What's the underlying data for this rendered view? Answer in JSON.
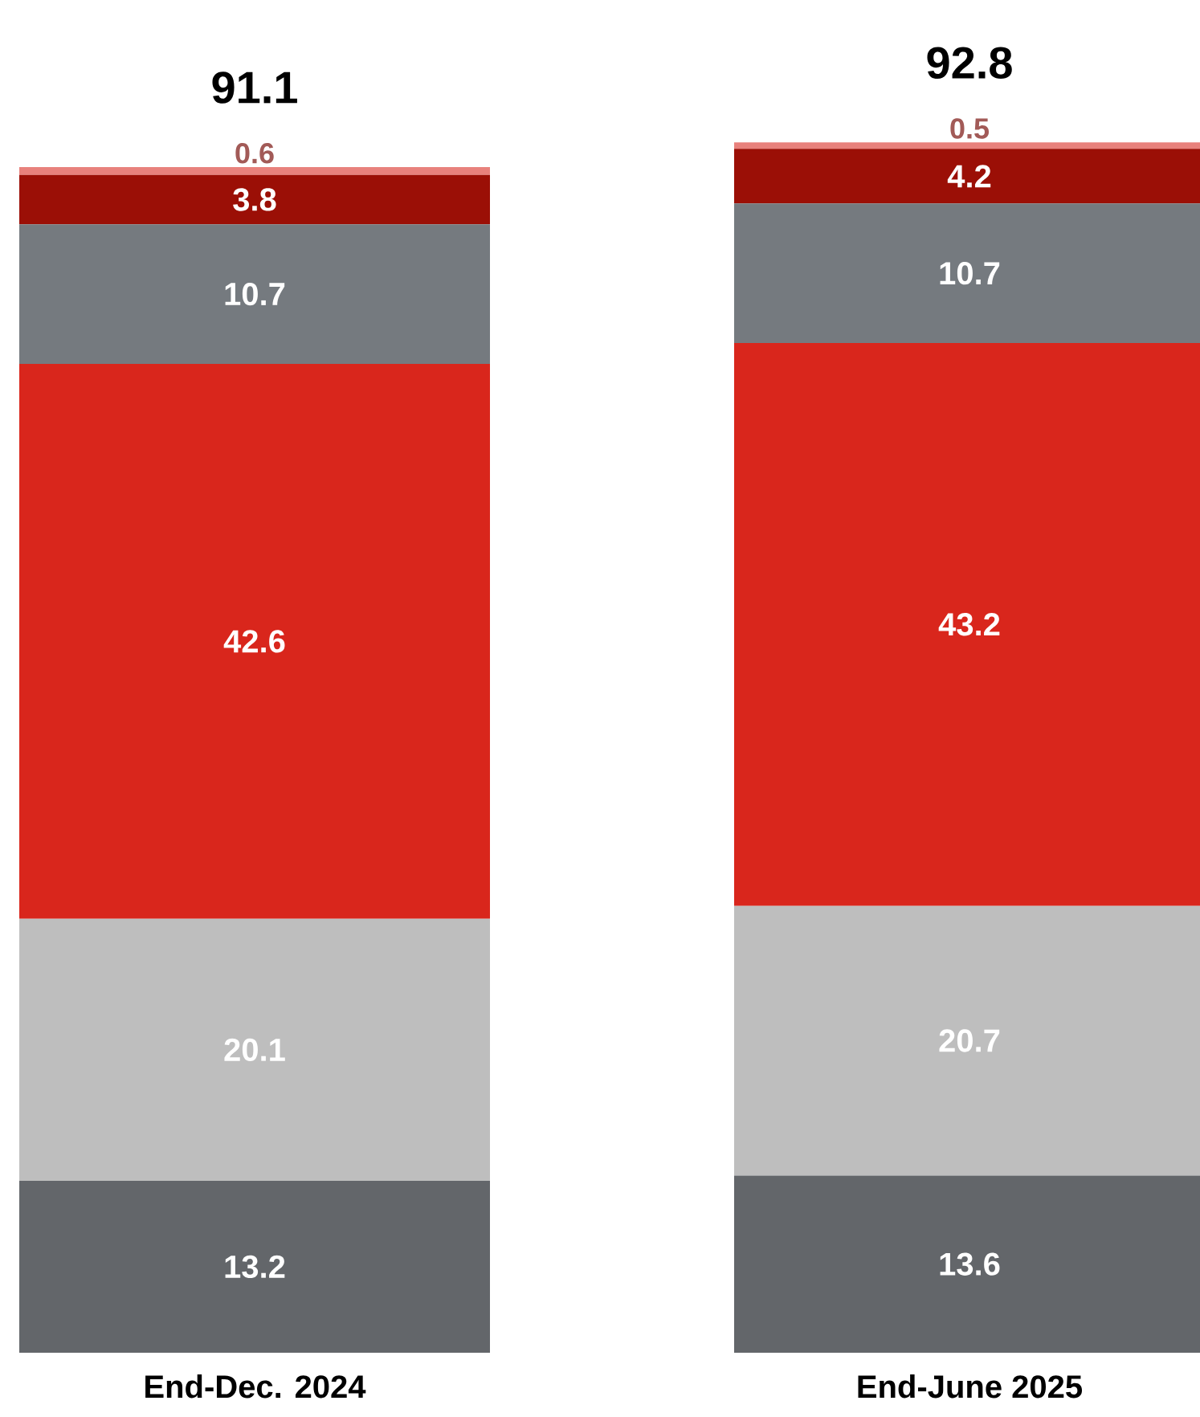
{
  "chart_data": {
    "type": "bar",
    "stacked": true,
    "categories": [
      "End-Dec. 2024",
      "End-June 2025"
    ],
    "series": [
      {
        "color": "#63666a",
        "values": [
          13.2,
          13.6
        ]
      },
      {
        "color": "#bebebe",
        "values": [
          20.1,
          20.7
        ]
      },
      {
        "color": "#d9261c",
        "values": [
          42.6,
          43.2
        ]
      },
      {
        "color": "#757a7f",
        "values": [
          10.7,
          10.7
        ]
      },
      {
        "color": "#9b0f06",
        "values": [
          3.8,
          4.2
        ]
      },
      {
        "color": "#e8817c",
        "values": [
          0.6,
          0.5
        ]
      }
    ],
    "data_labels": true,
    "totals": [
      "91.1",
      "92.8"
    ]
  }
}
